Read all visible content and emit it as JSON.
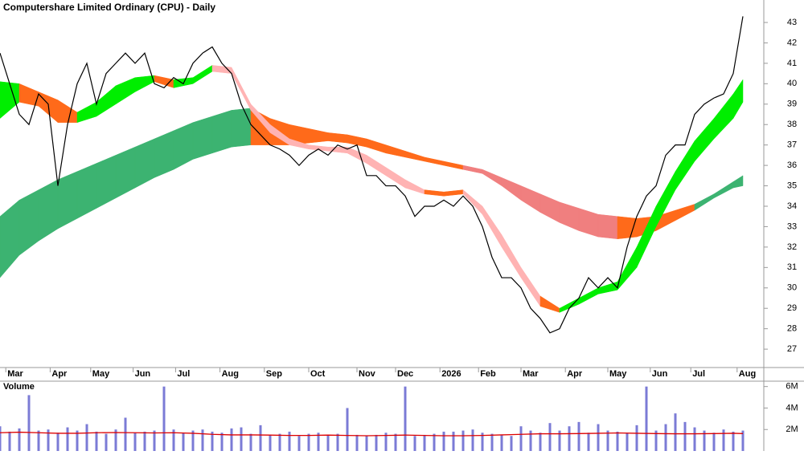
{
  "chart_data": {
    "type": "stock",
    "title": "Computershare Limited Ordinary (CPU) - Daily",
    "xlim": [
      0,
      395
    ],
    "xticks": [
      {
        "value": 3,
        "label": "Mar"
      },
      {
        "value": 26,
        "label": "Apr"
      },
      {
        "value": 47,
        "label": "May"
      },
      {
        "value": 69,
        "label": "Jun"
      },
      {
        "value": 91,
        "label": "Jul"
      },
      {
        "value": 114,
        "label": "Aug"
      },
      {
        "value": 137,
        "label": "Sep"
      },
      {
        "value": 160,
        "label": "Oct"
      },
      {
        "value": 185,
        "label": "Nov"
      },
      {
        "value": 205,
        "label": "Dec"
      },
      {
        "value": 228,
        "label": "2026"
      },
      {
        "value": 248,
        "label": "Feb"
      },
      {
        "value": 270,
        "label": "Mar"
      },
      {
        "value": 293,
        "label": "Apr"
      },
      {
        "value": 315,
        "label": "May"
      },
      {
        "value": 337,
        "label": "Jun"
      },
      {
        "value": 358,
        "label": "Jul"
      },
      {
        "value": 382,
        "label": "Aug"
      }
    ],
    "ylim": [
      26.1,
      44.1
    ],
    "yticks": [
      27,
      28,
      29,
      30,
      31,
      32,
      33,
      34,
      35,
      36,
      37,
      38,
      39,
      40,
      41,
      42,
      43
    ],
    "price": {
      "color": "#000000",
      "x": [
        0,
        5,
        10,
        15,
        20,
        25,
        30,
        35,
        40,
        45,
        50,
        55,
        60,
        65,
        70,
        75,
        80,
        85,
        90,
        95,
        100,
        105,
        110,
        115,
        120,
        125,
        130,
        135,
        140,
        145,
        150,
        155,
        160,
        165,
        170,
        175,
        180,
        185,
        190,
        195,
        200,
        205,
        210,
        215,
        220,
        225,
        230,
        235,
        240,
        245,
        250,
        255,
        260,
        265,
        270,
        275,
        280,
        285,
        290,
        295,
        300,
        305,
        310,
        315,
        320,
        325,
        330,
        335,
        340,
        345,
        350,
        355,
        360,
        365,
        370,
        375,
        380,
        385
      ],
      "values": [
        41.5,
        40,
        38.5,
        38,
        39.5,
        39,
        35,
        38,
        40,
        41,
        39,
        40.5,
        41,
        41.5,
        41,
        41.5,
        40,
        39.8,
        40.3,
        40,
        41,
        41.5,
        41.8,
        41,
        40.5,
        39,
        38,
        37.5,
        37,
        36.8,
        36.5,
        36,
        36.5,
        36.8,
        36.5,
        37,
        36.8,
        37,
        35.5,
        35.5,
        35,
        35,
        34.5,
        33.5,
        34,
        34,
        34.3,
        34,
        34.5,
        34,
        33,
        31.5,
        30.5,
        30.5,
        30,
        29,
        28.5,
        27.8,
        28,
        29,
        29.5,
        30.5,
        30,
        30.5,
        30,
        32,
        33.5,
        34.5,
        35,
        36.5,
        37,
        37,
        38.5,
        39,
        39.3,
        39.5,
        40.5,
        43.3
      ]
    },
    "bands": [
      {
        "x": [
          0,
          10,
          20,
          30,
          40,
          50,
          60,
          70,
          80,
          90,
          100,
          110,
          120,
          130,
          140,
          150,
          160,
          170,
          180,
          190,
          200,
          210,
          220,
          230,
          240,
          250,
          260,
          270,
          280,
          290,
          300,
          310,
          320,
          330,
          340,
          350,
          360,
          370,
          380,
          385
        ],
        "upper": [
          33.5,
          34.3,
          34.8,
          35.3,
          35.7,
          36.1,
          36.5,
          36.9,
          37.3,
          37.7,
          38.1,
          38.4,
          38.7,
          38.8,
          38.3,
          38.0,
          37.8,
          37.6,
          37.5,
          37.3,
          37.0,
          36.7,
          36.4,
          36.2,
          36.0,
          35.8,
          35.4,
          35.0,
          34.6,
          34.2,
          33.9,
          33.6,
          33.5,
          33.4,
          33.5,
          33.8,
          34.1,
          34.6,
          35.2,
          35.5
        ],
        "lower": [
          30.5,
          31.6,
          32.3,
          32.9,
          33.4,
          33.9,
          34.4,
          34.9,
          35.4,
          35.8,
          36.3,
          36.6,
          36.9,
          37.0,
          37.0,
          37.0,
          37.1,
          37.2,
          37.1,
          36.9,
          36.6,
          36.4,
          36.2,
          36.0,
          35.8,
          35.6,
          35.0,
          34.3,
          33.7,
          33.2,
          32.8,
          32.5,
          32.4,
          32.5,
          32.8,
          33.3,
          33.8,
          34.4,
          34.9,
          35.0
        ],
        "segment_colors": [
          "#3cb371",
          "#3cb371",
          "#3cb371",
          "#3cb371",
          "#3cb371",
          "#3cb371",
          "#3cb371",
          "#3cb371",
          "#3cb371",
          "#3cb371",
          "#3cb371",
          "#3cb371",
          "#3cb371",
          "#ff6a1a",
          "#ff6a1a",
          "#ff6a1a",
          "#ff6a1a",
          "#ff6a1a",
          "#ff6a1a",
          "#ff6a1a",
          "#ff6a1a",
          "#ff6a1a",
          "#ff6a1a",
          "#ff6a1a",
          "#f07f7f",
          "#f07f7f",
          "#f07f7f",
          "#f07f7f",
          "#f07f7f",
          "#f07f7f",
          "#f07f7f",
          "#f07f7f",
          "#ff6a1a",
          "#ff6a1a",
          "#ff6a1a",
          "#ff6a1a",
          "#3cb371",
          "#3cb371",
          "#3cb371"
        ]
      },
      {
        "x": [
          0,
          10,
          20,
          30,
          40,
          50,
          60,
          70,
          80,
          90,
          100,
          110,
          120,
          130,
          140,
          150,
          160,
          170,
          180,
          190,
          200,
          210,
          220,
          230,
          240,
          250,
          260,
          270,
          280,
          290,
          300,
          310,
          320,
          330,
          340,
          350,
          360,
          370,
          380,
          385
        ],
        "upper": [
          40.1,
          40.0,
          39.6,
          39.2,
          38.6,
          39.1,
          39.9,
          40.3,
          40.4,
          40.2,
          40.3,
          40.9,
          40.8,
          39.0,
          38.0,
          37.3,
          37.0,
          36.9,
          36.9,
          36.5,
          35.9,
          35.3,
          34.8,
          34.7,
          34.8,
          34.0,
          32.6,
          31.0,
          29.6,
          29.0,
          29.5,
          30.0,
          30.3,
          32.0,
          34.0,
          35.7,
          37.2,
          38.3,
          39.5,
          40.2
        ],
        "lower": [
          38.3,
          39.1,
          38.9,
          38.1,
          38.1,
          38.4,
          39.0,
          39.6,
          40.1,
          39.8,
          40.0,
          40.6,
          40.5,
          38.7,
          37.6,
          37.0,
          36.8,
          36.7,
          36.6,
          36.1,
          35.5,
          34.9,
          34.6,
          34.5,
          34.6,
          33.6,
          32.0,
          30.5,
          29.1,
          28.8,
          29.2,
          29.7,
          29.9,
          31.0,
          33.0,
          34.8,
          36.2,
          37.3,
          38.3,
          39.1
        ],
        "segment_colors": [
          "#00ee00",
          "#ff6a1a",
          "#ff6a1a",
          "#ff6a1a",
          "#00ee00",
          "#00ee00",
          "#00ee00",
          "#00ee00",
          "#ff6a1a",
          "#00ee00",
          "#00ee00",
          "#ffb3b3",
          "#ffb3b3",
          "#ffb3b3",
          "#ffb3b3",
          "#ffb3b3",
          "#ffb3b3",
          "#ffb3b3",
          "#ffb3b3",
          "#ffb3b3",
          "#ffb3b3",
          "#ffb3b3",
          "#ff6a1a",
          "#ff6a1a",
          "#ffb3b3",
          "#ffb3b3",
          "#ffb3b3",
          "#ffb3b3",
          "#ff6a1a",
          "#00ee00",
          "#00ee00",
          "#00ee00",
          "#00ee00",
          "#00ee00",
          "#00ee00",
          "#00ee00",
          "#00ee00",
          "#00ee00",
          "#00ee00"
        ]
      }
    ],
    "volume": {
      "title": "Volume",
      "color": "#7b7bd6",
      "ma_color": "#dd0000",
      "ylim": [
        0,
        6.5
      ],
      "yticks": [
        {
          "value": 2,
          "label": "2M"
        },
        {
          "value": 4,
          "label": "4M"
        },
        {
          "value": 6,
          "label": "6M"
        }
      ],
      "values": [
        2.3,
        1.8,
        2.1,
        5.2,
        1.9,
        2.0,
        1.7,
        2.2,
        1.9,
        2.5,
        1.8,
        1.6,
        2.0,
        3.1,
        1.7,
        1.8,
        1.9,
        6.0,
        2.0,
        1.7,
        1.9,
        2.0,
        1.8,
        1.7,
        2.1,
        2.2,
        1.6,
        2.4,
        1.5,
        1.6,
        1.8,
        1.4,
        1.6,
        1.7,
        1.5,
        1.6,
        4.0,
        1.5,
        1.4,
        1.5,
        1.7,
        1.6,
        6.0,
        1.4,
        1.5,
        1.6,
        1.8,
        1.8,
        1.9,
        2.0,
        1.7,
        1.6,
        1.5,
        1.4,
        2.3,
        1.9,
        1.7,
        2.6,
        1.9,
        2.3,
        2.7,
        1.7,
        2.5,
        1.9,
        1.8,
        1.7,
        2.4,
        6.0,
        1.9,
        2.5,
        3.5,
        2.7,
        2.2,
        1.9,
        1.7,
        2.0,
        1.8,
        1.9
      ],
      "ma": [
        1.7,
        1.75,
        1.7,
        1.65,
        1.65,
        1.7,
        1.72,
        1.7,
        1.68,
        1.7,
        1.65,
        1.55,
        1.5,
        1.5,
        1.48,
        1.45,
        1.45,
        1.48,
        1.45,
        1.42,
        1.45,
        1.48,
        1.45,
        1.42,
        1.42,
        1.45,
        1.5,
        1.55,
        1.6,
        1.6,
        1.62,
        1.65,
        1.68,
        1.65,
        1.62,
        1.6,
        1.6,
        1.62,
        1.65,
        1.62
      ]
    }
  }
}
